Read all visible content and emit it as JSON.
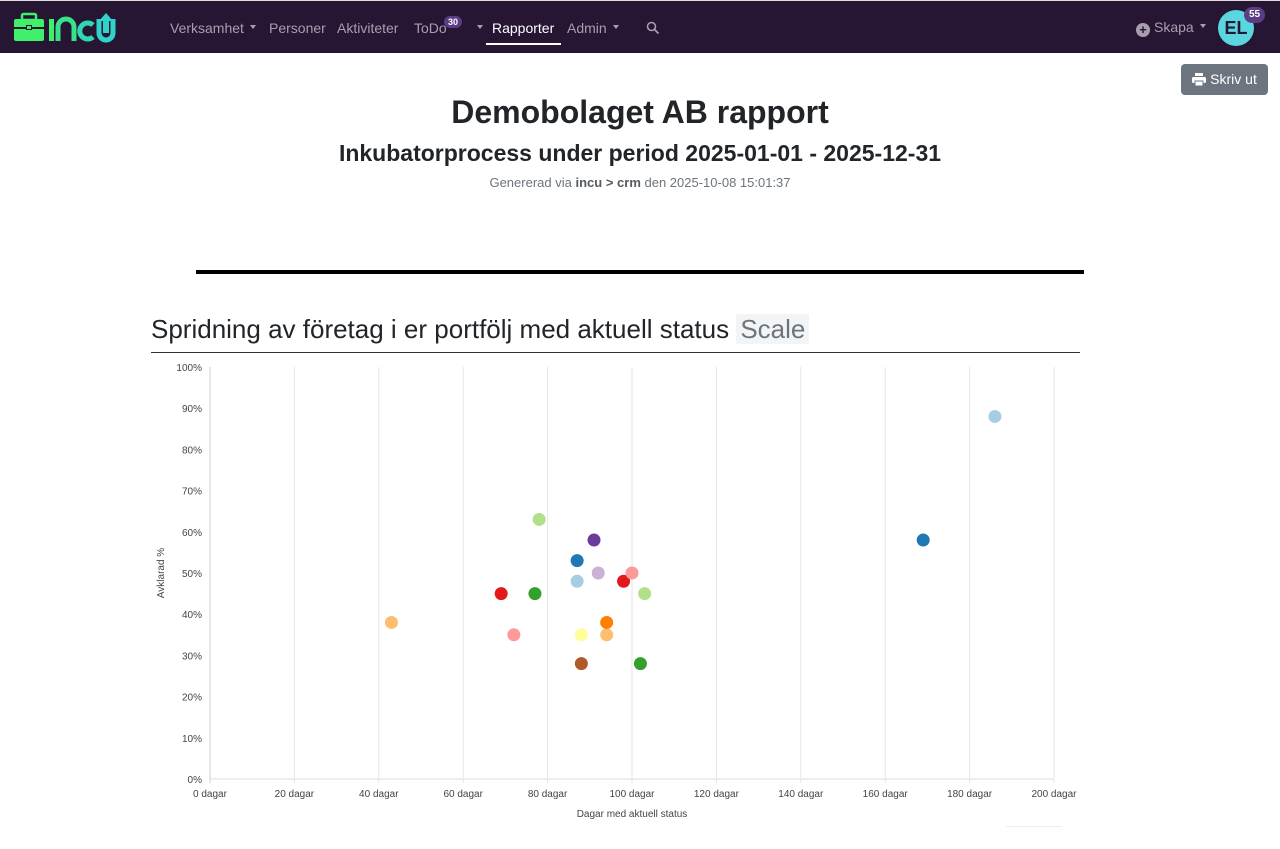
{
  "nav": {
    "logo_text": "incu",
    "items": [
      {
        "label": "Verksamhet",
        "dropdown": true
      },
      {
        "label": "Personer"
      },
      {
        "label": "Aktiviteter"
      },
      {
        "label": "ToDo",
        "badge": "30",
        "dropdown": true
      },
      {
        "label": "Rapporter",
        "active": true
      },
      {
        "label": "Admin",
        "dropdown": true
      }
    ],
    "search_icon": "search-icon",
    "create_label": "Skapa",
    "avatar_initials": "EL",
    "avatar_badge": "55"
  },
  "toolbar": {
    "print_label": "Skriv ut"
  },
  "report": {
    "title": "Demobolaget AB rapport",
    "subtitle": "Inkubatorprocess under period 2025-01-01 - 2025-12-31",
    "generated_prefix": "Genererad via",
    "generated_source": "incu > crm",
    "generated_suffix": "den 2025-10-08 15:01:37"
  },
  "section": {
    "title": "Spridning av företag i er portfölj med aktuell status",
    "badge": "Scale"
  },
  "colors": {
    "navbar": "#261634",
    "brand_green": "#3ef06a",
    "brand_teal": "#2fd3c9"
  },
  "chart_data": {
    "type": "scatter",
    "xlabel": "Dagar med aktuell status",
    "ylabel": "Avklarad %",
    "xlim": [
      0,
      200
    ],
    "ylim": [
      0,
      100
    ],
    "grid": true,
    "x_ticks": [
      "0 dagar",
      "20 dagar",
      "40 dagar",
      "60 dagar",
      "80 dagar",
      "100 dagar",
      "120 dagar",
      "140 dagar",
      "160 dagar",
      "180 dagar",
      "200 dagar"
    ],
    "y_ticks": [
      "0%",
      "10%",
      "20%",
      "30%",
      "40%",
      "50%",
      "60%",
      "70%",
      "80%",
      "90%",
      "100%"
    ],
    "points": [
      {
        "x": 43,
        "y": 38,
        "color": "#fdbf6f"
      },
      {
        "x": 78,
        "y": 63,
        "color": "#b2df8a"
      },
      {
        "x": 91,
        "y": 58,
        "color": "#6a3d9a"
      },
      {
        "x": 87,
        "y": 53,
        "color": "#1f78b4"
      },
      {
        "x": 92,
        "y": 50,
        "color": "#cab2d6"
      },
      {
        "x": 87,
        "y": 48,
        "color": "#a6cee3"
      },
      {
        "x": 98,
        "y": 48,
        "color": "#e31a1c"
      },
      {
        "x": 100,
        "y": 50,
        "color": "#fb9a99"
      },
      {
        "x": 103,
        "y": 45,
        "color": "#b2df8a"
      },
      {
        "x": 69,
        "y": 45,
        "color": "#e31a1c"
      },
      {
        "x": 77,
        "y": 45,
        "color": "#33a02c"
      },
      {
        "x": 72,
        "y": 35,
        "color": "#fb9a99"
      },
      {
        "x": 88,
        "y": 35,
        "color": "#ffff99"
      },
      {
        "x": 94,
        "y": 35,
        "color": "#fdbf6f"
      },
      {
        "x": 94,
        "y": 38,
        "color": "#ff7f00"
      },
      {
        "x": 88,
        "y": 28,
        "color": "#b15928"
      },
      {
        "x": 102,
        "y": 28,
        "color": "#33a02c"
      },
      {
        "x": 169,
        "y": 58,
        "color": "#1f78b4"
      },
      {
        "x": 186,
        "y": 88,
        "color": "#a6cee3"
      }
    ]
  }
}
